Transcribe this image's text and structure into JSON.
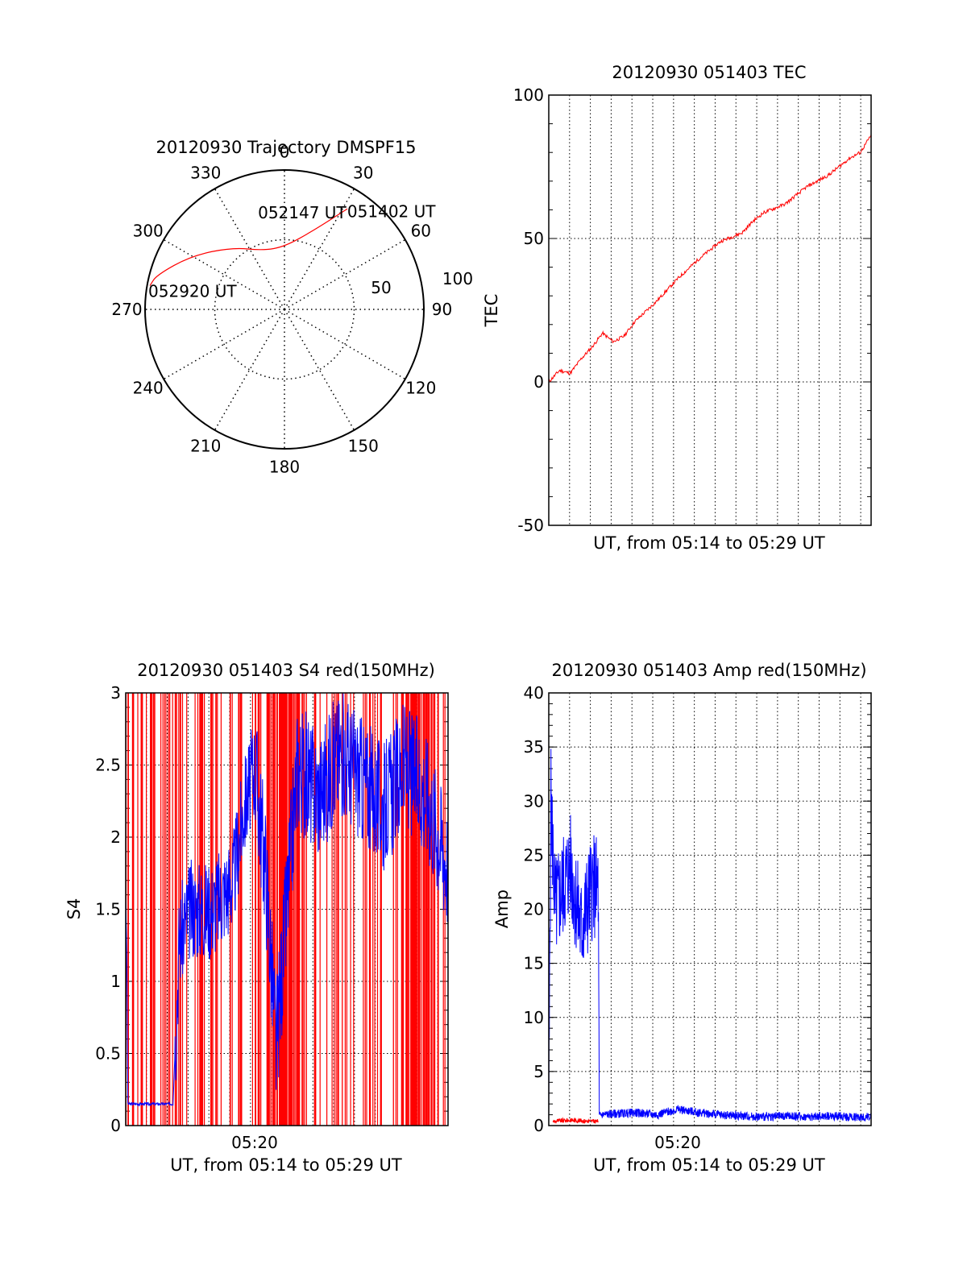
{
  "colors": {
    "red": "#ff0000",
    "blue": "#0000ff",
    "frame": "#000000",
    "grid": "#000000"
  },
  "chart_data": [
    {
      "id": "trajectory",
      "type": "polar",
      "title": "20120930 Trajectory DMSPF15",
      "angle_labels": [
        "0",
        "30",
        "60",
        "90",
        "120",
        "150",
        "180",
        "210",
        "240",
        "270",
        "300",
        "330"
      ],
      "radial_labels": [
        "50",
        "100"
      ],
      "rlim": [
        0,
        100
      ],
      "grid": true,
      "series": [
        {
          "color": "red",
          "points": [
            [
              32,
              85
            ],
            [
              20,
              60
            ],
            [
              0,
              45
            ],
            [
              -20,
              45
            ],
            [
              -40,
              58
            ],
            [
              -60,
              77
            ],
            [
              -75,
              95
            ],
            [
              -80,
              98
            ]
          ]
        }
      ],
      "annotations": [
        {
          "text": "051402 UT",
          "az": 32,
          "r": 85
        },
        {
          "text": "052147 UT",
          "az": 12,
          "r": 42
        },
        {
          "text": "052920 UT",
          "az": -80,
          "r": 98
        }
      ]
    },
    {
      "id": "tec",
      "type": "line",
      "title": "20120930 051403 TEC",
      "xlabel": "UT, from 05:14 to 05:29 UT",
      "ylabel": "TEC",
      "ylim": [
        -50,
        100
      ],
      "yticks": [
        "-50",
        "0",
        "50",
        "100"
      ],
      "grid": true,
      "series": [
        {
          "color": "red",
          "x": [
            0,
            0.5,
            1,
            1.5,
            2,
            2.5,
            3,
            3.5,
            4,
            5,
            6,
            7,
            8,
            9,
            9.5,
            10,
            11,
            12,
            13,
            14,
            14.5,
            15
          ],
          "y": [
            0,
            4,
            3,
            8,
            12,
            17,
            14,
            16,
            21,
            28,
            36,
            43,
            49,
            52,
            56,
            59,
            62,
            68,
            72,
            78,
            80,
            86
          ]
        }
      ]
    },
    {
      "id": "s4",
      "type": "line",
      "title": "20120930 051403 S4 red(150MHz)",
      "xlabel": "UT, from 05:14 to 05:29 UT",
      "ylabel": "S4",
      "ylim": [
        0,
        3
      ],
      "yticks": [
        "0",
        "0.5",
        "1",
        "1.5",
        "2",
        "2.5",
        "3"
      ],
      "xticks": [
        "05:20"
      ],
      "grid": true,
      "series": [
        {
          "color": "blue",
          "x": [
            0,
            0.05,
            0.1,
            0.2,
            2.2,
            2.5,
            3,
            4,
            5,
            5.5,
            6,
            6.5,
            7,
            8,
            9,
            10,
            11,
            12,
            13,
            14,
            15
          ],
          "y": [
            1.6,
            1.2,
            0.15,
            0.15,
            0.15,
            1.3,
            1.5,
            1.5,
            1.7,
            2.2,
            2.5,
            1.8,
            0.55,
            2.5,
            2.3,
            2.6,
            2.4,
            2.2,
            2.5,
            2.3,
            1.8
          ]
        },
        {
          "color": "red",
          "x": [
            0,
            0.5,
            1,
            1.5,
            2,
            2.5,
            3,
            3.5,
            4,
            4.5,
            5,
            5.5,
            6,
            6.5,
            7,
            7.5,
            8,
            8.5,
            9,
            9.5,
            10,
            10.5,
            11,
            11.5,
            12,
            12.5,
            13,
            13.5,
            14,
            14.5,
            15
          ],
          "y": [
            3,
            0,
            3,
            0,
            3,
            0,
            3,
            0,
            3,
            0,
            3,
            0,
            3,
            0,
            3,
            0,
            3,
            0,
            3,
            0,
            3,
            0,
            3,
            0,
            3,
            0,
            3,
            0,
            3,
            0,
            3
          ]
        }
      ]
    },
    {
      "id": "amp",
      "type": "line",
      "title": "20120930 051403 Amp red(150MHz)",
      "xlabel": "UT, from 05:14 to 05:29 UT",
      "ylabel": "Amp",
      "ylim": [
        0,
        40
      ],
      "yticks": [
        "0",
        "5",
        "10",
        "15",
        "20",
        "25",
        "30",
        "35",
        "40"
      ],
      "xticks": [
        "05:20"
      ],
      "grid": true,
      "series": [
        {
          "color": "blue",
          "x": [
            0,
            0.05,
            0.1,
            0.3,
            1,
            1.5,
            2,
            2.3,
            2.35,
            2.4,
            4,
            5,
            6,
            7,
            8,
            9,
            10,
            11,
            12,
            13,
            14,
            15
          ],
          "y": [
            0,
            16,
            30,
            20,
            24,
            18,
            22,
            22,
            0.8,
            1,
            1.2,
            1,
            1.5,
            1.2,
            1,
            0.9,
            0.8,
            0.9,
            0.8,
            0.9,
            0.8,
            0.8
          ]
        },
        {
          "color": "red",
          "x": [
            0.2,
            1,
            2,
            2.3
          ],
          "y": [
            0.4,
            0.5,
            0.4,
            0.4
          ]
        }
      ]
    }
  ]
}
